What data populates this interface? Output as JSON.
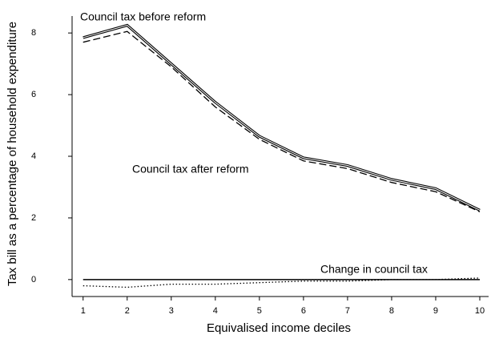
{
  "chart_data": {
    "type": "line",
    "x_label": "Equivalised income deciles",
    "y_label": "Tax bill as a percentage of household expenditure",
    "x": [
      1,
      2,
      3,
      4,
      5,
      6,
      7,
      8,
      9,
      10
    ],
    "series": [
      {
        "name": "Council tax before reform",
        "color": "#000000",
        "style": "solid",
        "values": [
          7.85,
          8.25,
          7.0,
          5.75,
          4.65,
          3.95,
          3.7,
          3.25,
          2.95,
          2.25
        ]
      },
      {
        "name": "Council tax after reform",
        "color": "#000000",
        "style": "dashed",
        "values": [
          7.7,
          8.05,
          6.9,
          5.6,
          4.55,
          3.85,
          3.6,
          3.15,
          2.85,
          2.2
        ]
      },
      {
        "name": "Change in council tax",
        "color": "#000000",
        "style": "dotted",
        "values": [
          -0.2,
          -0.25,
          -0.15,
          -0.15,
          -0.1,
          -0.05,
          -0.05,
          0,
          0,
          0.05
        ]
      }
    ],
    "xlim": [
      0.75,
      10.2
    ],
    "xticks": [
      1,
      2,
      3,
      4,
      5,
      6,
      7,
      8,
      9,
      10
    ],
    "ylim": [
      -0.55,
      8.55
    ],
    "yticks": [
      0,
      2,
      4,
      6,
      8
    ],
    "zero_line": true,
    "grid": false
  }
}
